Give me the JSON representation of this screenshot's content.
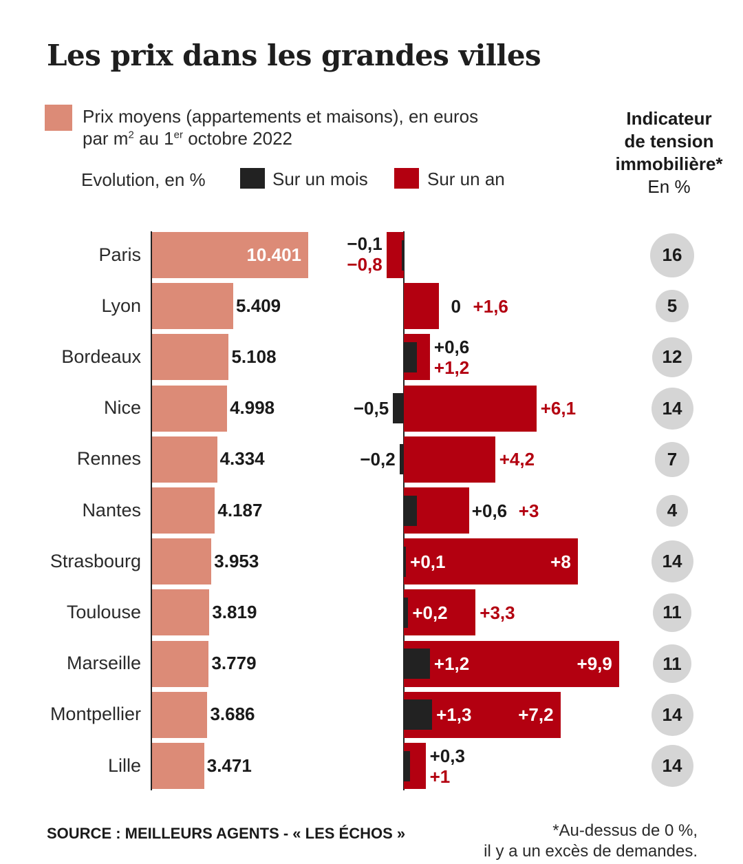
{
  "title": "Les prix dans les grandes villes",
  "legend": {
    "price_line1": "Prix moyens (appartements et maisons), en euros",
    "price_line2_a": "par m",
    "price_line2_sup1": "2",
    "price_line2_b": " au 1",
    "price_line2_sup2": "er",
    "price_line2_c": " octobre 2022",
    "evolution": "Evolution, en %",
    "month": "Sur un mois",
    "year": "Sur un an"
  },
  "indicator": {
    "line1": "Indicateur",
    "line2": "de tension",
    "line3": "immobilière*",
    "unit": "En %"
  },
  "colors": {
    "price": "#dc8b77",
    "month": "#222222",
    "year": "#b30010",
    "circle": "#d5d5d5"
  },
  "chart_data": {
    "type": "bar",
    "categories": [
      "Paris",
      "Lyon",
      "Bordeaux",
      "Nice",
      "Rennes",
      "Nantes",
      "Strasbourg",
      "Toulouse",
      "Marseille",
      "Montpellier",
      "Lille"
    ],
    "series": [
      {
        "name": "Prix moyens (appartements et maisons), en euros par m2 au 1er octobre 2022",
        "values": [
          10401,
          5409,
          5108,
          4998,
          4334,
          4187,
          3953,
          3819,
          3779,
          3686,
          3471
        ],
        "labels": [
          "10.401",
          "5.409",
          "5.108",
          "4.998",
          "4.334",
          "4.187",
          "3.953",
          "3.819",
          "3.779",
          "3.686",
          "3.471"
        ]
      },
      {
        "name": "Sur un mois",
        "values": [
          -0.1,
          0,
          0.6,
          -0.5,
          -0.2,
          0.6,
          0.1,
          0.2,
          1.2,
          1.3,
          0.3
        ],
        "labels": [
          "−0,1",
          "0",
          "+0,6",
          "−0,5",
          "−0,2",
          "+0,6",
          "+0,1",
          "+0,2",
          "+1,2",
          "+1,3",
          "+0,3"
        ]
      },
      {
        "name": "Sur un an",
        "values": [
          -0.8,
          1.6,
          1.2,
          6.1,
          4.2,
          3,
          8,
          3.3,
          9.9,
          7.2,
          1
        ],
        "labels": [
          "−0,8",
          "+1,6",
          "+1,2",
          "+6,1",
          "+4,2",
          "+3",
          "+8",
          "+3,3",
          "+9,9",
          "+7,2",
          "+1"
        ]
      },
      {
        "name": "Indicateur de tension immobilière",
        "values": [
          16,
          5,
          12,
          14,
          7,
          4,
          14,
          11,
          11,
          14,
          14
        ]
      }
    ]
  },
  "footer": {
    "source": "SOURCE : MEILLEURS AGENTS - « LES ÉCHOS »",
    "note_line1": "*Au-dessus de 0 %,",
    "note_line2": "il y a un excès de demandes."
  }
}
